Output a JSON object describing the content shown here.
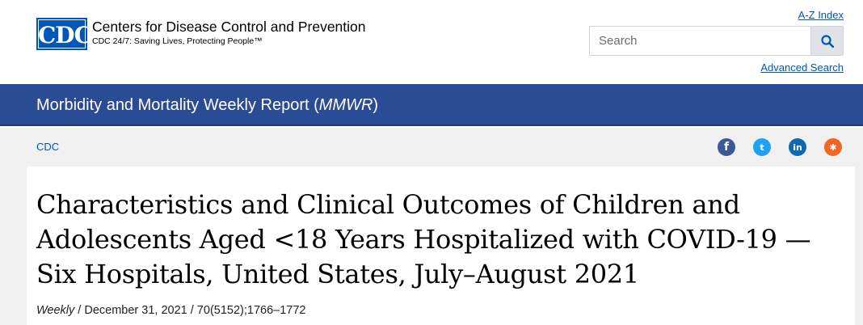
{
  "header": {
    "logo_mark": "CDC",
    "logo_title": "Centers for Disease Control and Prevention",
    "logo_tagline": "CDC 24/7: Saving Lives, Protecting People™",
    "az_index": "A-Z Index",
    "search": {
      "placeholder": "Search",
      "value": ""
    },
    "advanced_search": "Advanced Search"
  },
  "band": {
    "title_prefix": "Morbidity and Mortality Weekly Report (",
    "title_abbrev": "MMWR",
    "title_suffix": ")"
  },
  "breadcrumb": {
    "item": "CDC"
  },
  "social": {
    "facebook": "f",
    "twitter": "t",
    "linkedin": "in",
    "syndicate": "✱"
  },
  "article": {
    "title": "Characteristics and Clinical Outcomes of Children and Adolescents Aged <18 Years Hospitalized with COVID-19 — Six Hospitals, United States, July–August 2021",
    "meta_weekly": "Weekly",
    "meta_rest": " / December 31, 2021 / 70(5152);1766–1772"
  },
  "colors": {
    "brand_blue": "#0057b7",
    "band_blue": "#2a4c94",
    "grey_bg": "#f0f0f0"
  }
}
